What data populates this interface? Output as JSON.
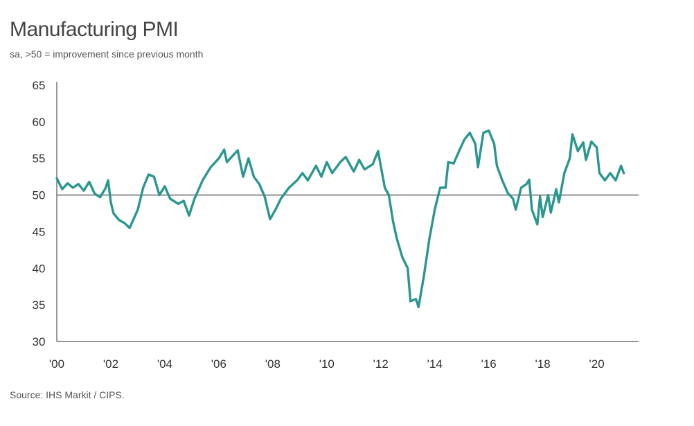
{
  "title": "Manufacturing PMI",
  "subtitle": "sa, >50 = improvement since previous month",
  "source": "Source: IHS Markit / CIPS.",
  "colors": {
    "line": "#2a9690",
    "axis": "#555555",
    "reference": "#555555"
  },
  "chart_data": {
    "type": "line",
    "title": "Manufacturing PMI",
    "subtitle": "sa, >50 = improvement since previous month",
    "xlabel": "",
    "ylabel": "",
    "ylim": [
      30,
      65
    ],
    "yticks": [
      30,
      35,
      40,
      45,
      50,
      55,
      60,
      65
    ],
    "xlim": [
      2000.0,
      2021.55
    ],
    "xticks": [
      {
        "value": 2000,
        "label": "'00"
      },
      {
        "value": 2002,
        "label": "'02"
      },
      {
        "value": 2004,
        "label": "'04"
      },
      {
        "value": 2006,
        "label": "'06"
      },
      {
        "value": 2008,
        "label": "'08"
      },
      {
        "value": 2010,
        "label": "'10"
      },
      {
        "value": 2012,
        "label": "'12"
      },
      {
        "value": 2014,
        "label": "'14"
      },
      {
        "value": 2016,
        "label": "'16"
      },
      {
        "value": 2018,
        "label": "'18"
      },
      {
        "value": 2020,
        "label": "'20"
      }
    ],
    "reference_line": 50,
    "grid": false,
    "legend": "none",
    "series": [
      {
        "values": [
          [
            2000.0,
            52.3
          ],
          [
            2000.2,
            50.8
          ],
          [
            2000.4,
            51.6
          ],
          [
            2000.6,
            51.0
          ],
          [
            2000.8,
            51.5
          ],
          [
            2001.0,
            50.6
          ],
          [
            2001.2,
            51.8
          ],
          [
            2001.4,
            50.2
          ],
          [
            2001.6,
            49.7
          ],
          [
            2001.8,
            50.9
          ],
          [
            2001.9,
            52.0
          ],
          [
            2002.0,
            49.0
          ],
          [
            2002.1,
            47.5
          ],
          [
            2002.3,
            46.6
          ],
          [
            2002.5,
            46.2
          ],
          [
            2002.7,
            45.5
          ],
          [
            2003.0,
            48.0
          ],
          [
            2003.2,
            51.0
          ],
          [
            2003.4,
            52.8
          ],
          [
            2003.6,
            52.5
          ],
          [
            2003.8,
            50.0
          ],
          [
            2004.0,
            51.2
          ],
          [
            2004.2,
            49.5
          ],
          [
            2004.5,
            48.8
          ],
          [
            2004.7,
            49.2
          ],
          [
            2004.9,
            47.2
          ],
          [
            2005.1,
            49.5
          ],
          [
            2005.4,
            52.0
          ],
          [
            2005.7,
            53.8
          ],
          [
            2006.0,
            55.0
          ],
          [
            2006.2,
            56.2
          ],
          [
            2006.3,
            54.5
          ],
          [
            2006.5,
            55.3
          ],
          [
            2006.7,
            56.1
          ],
          [
            2006.9,
            52.5
          ],
          [
            2007.1,
            55.0
          ],
          [
            2007.3,
            52.5
          ],
          [
            2007.5,
            51.5
          ],
          [
            2007.7,
            49.8
          ],
          [
            2007.9,
            46.7
          ],
          [
            2008.1,
            48.0
          ],
          [
            2008.3,
            49.5
          ],
          [
            2008.6,
            51.0
          ],
          [
            2008.9,
            52.0
          ],
          [
            2009.1,
            53.0
          ],
          [
            2009.3,
            52.0
          ],
          [
            2009.6,
            54.0
          ],
          [
            2009.8,
            52.5
          ],
          [
            2010.0,
            54.5
          ],
          [
            2010.2,
            53.0
          ],
          [
            2010.5,
            54.5
          ],
          [
            2010.7,
            55.2
          ],
          [
            2011.0,
            53.2
          ],
          [
            2011.2,
            54.8
          ],
          [
            2011.4,
            53.5
          ],
          [
            2011.7,
            54.2
          ],
          [
            2011.9,
            56.0
          ],
          [
            2012.0,
            54.0
          ],
          [
            2012.15,
            51.0
          ],
          [
            2012.3,
            50.0
          ],
          [
            2012.45,
            46.5
          ],
          [
            2012.6,
            44.0
          ],
          [
            2012.8,
            41.5
          ],
          [
            2013.0,
            40.0
          ],
          [
            2013.1,
            35.5
          ],
          [
            2013.3,
            35.8
          ],
          [
            2013.4,
            34.7
          ],
          [
            2013.6,
            39.0
          ],
          [
            2013.8,
            44.0
          ],
          [
            2014.0,
            48.0
          ],
          [
            2014.2,
            51.0
          ],
          [
            2014.4,
            51.0
          ],
          [
            2014.5,
            54.5
          ],
          [
            2014.7,
            54.3
          ],
          [
            2014.9,
            56.0
          ],
          [
            2015.1,
            57.6
          ],
          [
            2015.3,
            58.5
          ],
          [
            2015.5,
            57.0
          ],
          [
            2015.6,
            53.8
          ],
          [
            2015.8,
            58.5
          ],
          [
            2016.0,
            58.8
          ],
          [
            2016.2,
            57.0
          ],
          [
            2016.3,
            54.0
          ],
          [
            2016.5,
            52.0
          ],
          [
            2016.7,
            50.3
          ],
          [
            2016.9,
            49.5
          ],
          [
            2017.0,
            48.0
          ],
          [
            2017.2,
            51.0
          ],
          [
            2017.4,
            51.5
          ],
          [
            2017.5,
            52.1
          ],
          [
            2017.6,
            48.0
          ],
          [
            2017.8,
            46.0
          ],
          [
            2017.9,
            49.8
          ],
          [
            2018.0,
            47.0
          ],
          [
            2018.2,
            50.0
          ],
          [
            2018.3,
            47.6
          ],
          [
            2018.5,
            50.8
          ],
          [
            2018.6,
            49.0
          ],
          [
            2018.8,
            53.0
          ],
          [
            2019.0,
            55.0
          ],
          [
            2019.1,
            58.3
          ],
          [
            2019.3,
            56.0
          ],
          [
            2019.5,
            57.2
          ],
          [
            2019.6,
            54.8
          ],
          [
            2019.8,
            57.3
          ],
          [
            2020.0,
            56.5
          ],
          [
            2020.1,
            53.0
          ],
          [
            2020.3,
            52.0
          ],
          [
            2020.5,
            53.0
          ],
          [
            2020.7,
            52.0
          ],
          [
            2020.9,
            54.0
          ],
          [
            2021.0,
            53.0
          ]
        ]
      }
    ]
  }
}
